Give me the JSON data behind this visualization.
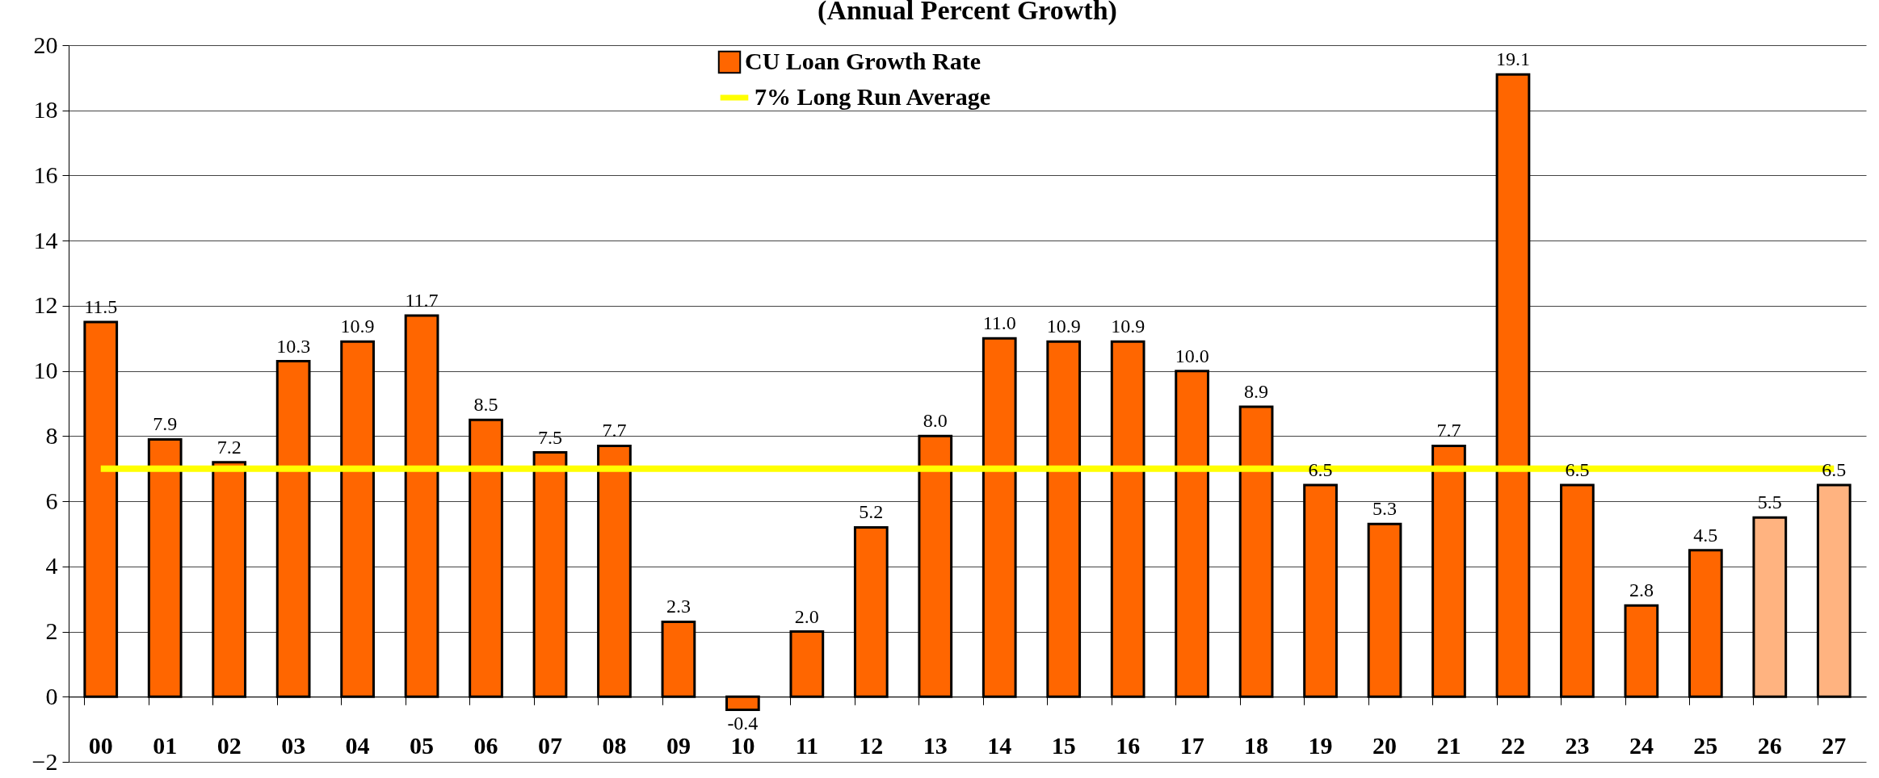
{
  "chart_data": {
    "type": "bar",
    "title": "(Annual Percent Growth)",
    "categories": [
      "00",
      "01",
      "02",
      "03",
      "04",
      "05",
      "06",
      "07",
      "08",
      "09",
      "10",
      "11",
      "12",
      "13",
      "14",
      "15",
      "16",
      "17",
      "18",
      "19",
      "20",
      "21",
      "22",
      "23",
      "24",
      "25",
      "26",
      "27"
    ],
    "series": [
      {
        "name": "CU Loan Growth Rate",
        "color": "#ff6600",
        "colors": [
          "#ff6600",
          "#ff6600",
          "#ff6600",
          "#ff6600",
          "#ff6600",
          "#ff6600",
          "#ff6600",
          "#ff6600",
          "#ff6600",
          "#ff6600",
          "#ff6600",
          "#ff6600",
          "#ff6600",
          "#ff6600",
          "#ff6600",
          "#ff6600",
          "#ff6600",
          "#ff6600",
          "#ff6600",
          "#ff6600",
          "#ff6600",
          "#ff6600",
          "#ff6600",
          "#ff6600",
          "#ff6600",
          "#ff6600",
          "#ffb380",
          "#ffb380"
        ],
        "values": [
          11.5,
          7.9,
          7.2,
          10.3,
          10.9,
          11.7,
          8.5,
          7.5,
          7.7,
          2.3,
          -0.4,
          2.0,
          5.2,
          8.0,
          11.0,
          10.9,
          10.9,
          10.0,
          8.9,
          6.5,
          5.3,
          7.7,
          19.1,
          6.5,
          2.8,
          4.5,
          5.5,
          6.5
        ],
        "value_labels": [
          "11.5",
          "7.9",
          "7.2",
          "10.3",
          "10.9",
          "11.7",
          "8.5",
          "7.5",
          "7.7",
          "2.3",
          "-0.4",
          "2.0",
          "5.2",
          "8.0",
          "11.0",
          "10.9",
          "10.9",
          "10.0",
          "8.9",
          "6.5",
          "5.3",
          "7.7",
          "19.1",
          "6.5",
          "2.8",
          "4.5",
          "5.5",
          "6.5"
        ]
      }
    ],
    "ref_lines": [
      {
        "axis": "y",
        "value": 7,
        "label": "7% Long Run Average",
        "color": "#ffff00"
      }
    ],
    "ylim": [
      -2,
      20
    ],
    "yticks": [
      -2,
      0,
      2,
      4,
      6,
      8,
      10,
      12,
      14,
      16,
      18,
      20
    ],
    "grid": "y",
    "legend": "top"
  }
}
